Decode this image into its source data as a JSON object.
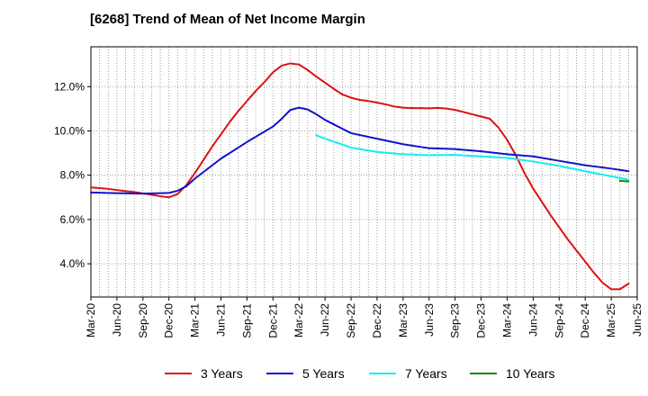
{
  "chart_data": {
    "type": "line",
    "title": "[6268]  Trend of Mean of Net Income Margin",
    "xlabel": "",
    "ylabel": "",
    "x_ticks": [
      "Mar-20",
      "Jun-20",
      "Sep-20",
      "Dec-20",
      "Mar-21",
      "Jun-21",
      "Sep-21",
      "Dec-21",
      "Mar-22",
      "Jun-22",
      "Sep-22",
      "Dec-22",
      "Mar-23",
      "Jun-23",
      "Sep-23",
      "Dec-23",
      "Mar-24",
      "Jun-24",
      "Sep-24",
      "Dec-24",
      "Mar-25",
      "Jun-25"
    ],
    "y_ticks": [
      {
        "value": 4,
        "label": "4.0%"
      },
      {
        "value": 6,
        "label": "6.0%"
      },
      {
        "value": 8,
        "label": "8.0%"
      },
      {
        "value": 10,
        "label": "10.0%"
      },
      {
        "value": 12,
        "label": "12.0%"
      }
    ],
    "xlim": [
      "Mar-20",
      "Jun-25"
    ],
    "ylim": [
      2.5,
      13.8
    ],
    "grid": true,
    "legend_position": "bottom",
    "series": [
      {
        "name": "3 Years",
        "color": "#dd1111",
        "points": [
          [
            "Mar-20",
            7.45
          ],
          [
            "Apr-20",
            7.42
          ],
          [
            "May-20",
            7.38
          ],
          [
            "Jun-20",
            7.33
          ],
          [
            "Jul-20",
            7.28
          ],
          [
            "Aug-20",
            7.24
          ],
          [
            "Sep-20",
            7.18
          ],
          [
            "Oct-20",
            7.12
          ],
          [
            "Nov-20",
            7.05
          ],
          [
            "Dec-20",
            7.0
          ],
          [
            "Jan-21",
            7.15
          ],
          [
            "Feb-21",
            7.55
          ],
          [
            "Mar-21",
            8.1
          ],
          [
            "Apr-21",
            8.7
          ],
          [
            "May-21",
            9.3
          ],
          [
            "Jun-21",
            9.85
          ],
          [
            "Jul-21",
            10.4
          ],
          [
            "Aug-21",
            10.9
          ],
          [
            "Sep-21",
            11.35
          ],
          [
            "Oct-21",
            11.8
          ],
          [
            "Nov-21",
            12.2
          ],
          [
            "Dec-21",
            12.65
          ],
          [
            "Jan-22",
            12.95
          ],
          [
            "Feb-22",
            13.05
          ],
          [
            "Mar-22",
            13.0
          ],
          [
            "Apr-22",
            12.75
          ],
          [
            "May-22",
            12.45
          ],
          [
            "Jun-22",
            12.18
          ],
          [
            "Jul-22",
            11.9
          ],
          [
            "Aug-22",
            11.65
          ],
          [
            "Sep-22",
            11.5
          ],
          [
            "Oct-22",
            11.4
          ],
          [
            "Nov-22",
            11.35
          ],
          [
            "Dec-22",
            11.28
          ],
          [
            "Jan-23",
            11.2
          ],
          [
            "Feb-23",
            11.1
          ],
          [
            "Mar-23",
            11.05
          ],
          [
            "Apr-23",
            11.03
          ],
          [
            "May-23",
            11.03
          ],
          [
            "Jun-23",
            11.02
          ],
          [
            "Jul-23",
            11.04
          ],
          [
            "Aug-23",
            11.01
          ],
          [
            "Sep-23",
            10.95
          ],
          [
            "Oct-23",
            10.85
          ],
          [
            "Nov-23",
            10.75
          ],
          [
            "Dec-23",
            10.65
          ],
          [
            "Jan-24",
            10.55
          ],
          [
            "Feb-24",
            10.15
          ],
          [
            "Mar-24",
            9.6
          ],
          [
            "Apr-24",
            8.9
          ],
          [
            "May-24",
            8.1
          ],
          [
            "Jun-24",
            7.4
          ],
          [
            "Jul-24",
            6.8
          ],
          [
            "Aug-24",
            6.2
          ],
          [
            "Sep-24",
            5.65
          ],
          [
            "Oct-24",
            5.1
          ],
          [
            "Nov-24",
            4.6
          ],
          [
            "Dec-24",
            4.1
          ],
          [
            "Jan-25",
            3.6
          ],
          [
            "Feb-25",
            3.15
          ],
          [
            "Mar-25",
            2.85
          ],
          [
            "Apr-25",
            2.85
          ],
          [
            "May-25",
            3.1
          ]
        ]
      },
      {
        "name": "5 Years",
        "color": "#1111cc",
        "points": [
          [
            "Mar-20",
            7.22
          ],
          [
            "Jun-20",
            7.19
          ],
          [
            "Sep-20",
            7.17
          ],
          [
            "Dec-20",
            7.2
          ],
          [
            "Jan-21",
            7.3
          ],
          [
            "Feb-21",
            7.5
          ],
          [
            "Mar-21",
            7.85
          ],
          [
            "Jun-21",
            8.75
          ],
          [
            "Sep-21",
            9.5
          ],
          [
            "Dec-21",
            10.2
          ],
          [
            "Jan-22",
            10.55
          ],
          [
            "Feb-22",
            10.95
          ],
          [
            "Mar-22",
            11.05
          ],
          [
            "Apr-22",
            10.97
          ],
          [
            "May-22",
            10.75
          ],
          [
            "Jun-22",
            10.5
          ],
          [
            "Sep-22",
            9.9
          ],
          [
            "Dec-22",
            9.65
          ],
          [
            "Mar-23",
            9.4
          ],
          [
            "Jun-23",
            9.22
          ],
          [
            "Sep-23",
            9.18
          ],
          [
            "Dec-23",
            9.08
          ],
          [
            "Mar-24",
            8.95
          ],
          [
            "Jun-24",
            8.85
          ],
          [
            "Sep-24",
            8.65
          ],
          [
            "Dec-24",
            8.45
          ],
          [
            "Mar-25",
            8.3
          ],
          [
            "May-25",
            8.18
          ]
        ]
      },
      {
        "name": "7 Years",
        "color": "#11eeee",
        "points": [
          [
            "May-22",
            9.8
          ],
          [
            "Jun-22",
            9.65
          ],
          [
            "Sep-22",
            9.25
          ],
          [
            "Dec-22",
            9.05
          ],
          [
            "Mar-23",
            8.95
          ],
          [
            "Jun-23",
            8.9
          ],
          [
            "Sep-23",
            8.92
          ],
          [
            "Dec-23",
            8.85
          ],
          [
            "Mar-24",
            8.78
          ],
          [
            "Jun-24",
            8.62
          ],
          [
            "Sep-24",
            8.42
          ],
          [
            "Dec-24",
            8.18
          ],
          [
            "Mar-25",
            7.95
          ],
          [
            "May-25",
            7.8
          ]
        ]
      },
      {
        "name": "10 Years",
        "color": "#118811",
        "points": [
          [
            "Apr-25",
            7.75
          ],
          [
            "May-25",
            7.72
          ]
        ]
      }
    ]
  }
}
